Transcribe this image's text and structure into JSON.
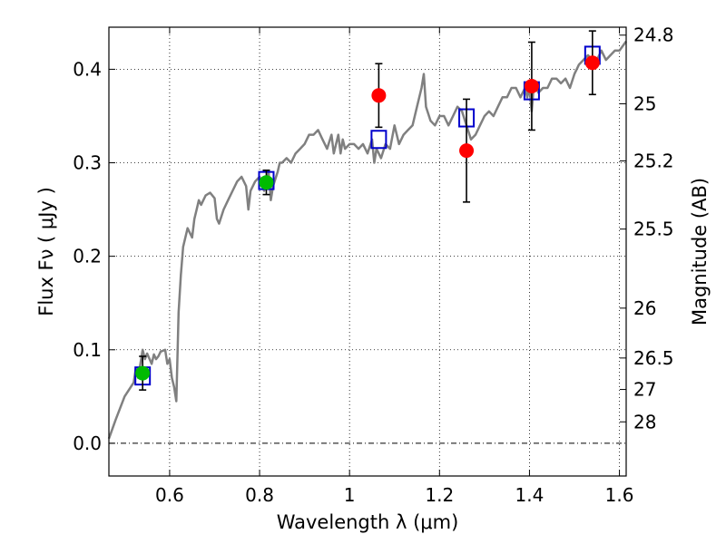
{
  "chart_data": {
    "type": "scatter",
    "title": "",
    "xlabel": "Wavelength  λ (μm)",
    "ylabel": "Flux  Fν  ( μJy )",
    "ylabel_right": "Magnitude (AB)",
    "xlim": [
      0.465,
      1.615
    ],
    "ylim": [
      -0.035,
      0.445
    ],
    "grid": true,
    "zero_line_style": "dash-dot",
    "x_ticks": [
      0.6,
      0.8,
      1.0,
      1.2,
      1.4,
      1.6
    ],
    "x_tick_labels": [
      "0.6",
      "0.8",
      "1",
      "1.2",
      "1.4",
      "1.6"
    ],
    "y_ticks": [
      0.0,
      0.1,
      0.2,
      0.3,
      0.4
    ],
    "y_tick_labels": [
      "0.0",
      "0.1",
      "0.2",
      "0.3",
      "0.4"
    ],
    "right_axis": {
      "label": "Magnitude (AB)",
      "ticks": [
        {
          "value": 24.8,
          "label": "24.8"
        },
        {
          "value": 25.0,
          "label": "25"
        },
        {
          "value": 25.2,
          "label": "25.2"
        },
        {
          "value": 25.5,
          "label": "25.5"
        },
        {
          "value": 26.0,
          "label": "26"
        },
        {
          "value": 26.5,
          "label": "26.5"
        },
        {
          "value": 27.0,
          "label": "27"
        },
        {
          "value": 28.0,
          "label": "28"
        }
      ]
    },
    "series": [
      {
        "name": "Model spectrum",
        "kind": "line",
        "color": "#808080",
        "x": [
          0.465,
          0.48,
          0.5,
          0.52,
          0.525,
          0.53,
          0.535,
          0.54,
          0.545,
          0.55,
          0.56,
          0.565,
          0.57,
          0.575,
          0.58,
          0.59,
          0.595,
          0.6,
          0.605,
          0.61,
          0.615,
          0.62,
          0.625,
          0.63,
          0.64,
          0.65,
          0.655,
          0.66,
          0.665,
          0.67,
          0.68,
          0.69,
          0.7,
          0.705,
          0.71,
          0.72,
          0.73,
          0.74,
          0.75,
          0.76,
          0.77,
          0.775,
          0.78,
          0.79,
          0.8,
          0.81,
          0.82,
          0.825,
          0.83,
          0.84,
          0.845,
          0.85,
          0.86,
          0.87,
          0.88,
          0.89,
          0.9,
          0.91,
          0.92,
          0.93,
          0.94,
          0.95,
          0.96,
          0.965,
          0.97,
          0.975,
          0.98,
          0.985,
          0.99,
          1.0,
          1.01,
          1.02,
          1.03,
          1.04,
          1.05,
          1.055,
          1.06,
          1.07,
          1.08,
          1.09,
          1.1,
          1.11,
          1.12,
          1.13,
          1.14,
          1.15,
          1.16,
          1.165,
          1.17,
          1.18,
          1.19,
          1.2,
          1.21,
          1.22,
          1.23,
          1.24,
          1.25,
          1.26,
          1.27,
          1.28,
          1.29,
          1.3,
          1.31,
          1.32,
          1.33,
          1.34,
          1.35,
          1.36,
          1.37,
          1.38,
          1.39,
          1.395,
          1.4,
          1.405,
          1.41,
          1.42,
          1.43,
          1.44,
          1.45,
          1.46,
          1.47,
          1.48,
          1.49,
          1.5,
          1.51,
          1.52,
          1.53,
          1.54,
          1.55,
          1.56,
          1.57,
          1.58,
          1.59,
          1.6,
          1.615
        ],
        "y": [
          0.005,
          0.025,
          0.05,
          0.065,
          0.08,
          0.07,
          0.085,
          0.1,
          0.09,
          0.096,
          0.085,
          0.095,
          0.09,
          0.093,
          0.098,
          0.1,
          0.085,
          0.09,
          0.07,
          0.06,
          0.045,
          0.14,
          0.18,
          0.21,
          0.23,
          0.22,
          0.24,
          0.25,
          0.26,
          0.255,
          0.265,
          0.268,
          0.262,
          0.24,
          0.235,
          0.25,
          0.26,
          0.27,
          0.28,
          0.285,
          0.275,
          0.25,
          0.27,
          0.28,
          0.285,
          0.27,
          0.29,
          0.26,
          0.275,
          0.29,
          0.3,
          0.3,
          0.305,
          0.3,
          0.31,
          0.315,
          0.32,
          0.33,
          0.33,
          0.335,
          0.325,
          0.315,
          0.33,
          0.31,
          0.32,
          0.33,
          0.31,
          0.325,
          0.315,
          0.32,
          0.32,
          0.315,
          0.32,
          0.31,
          0.325,
          0.3,
          0.315,
          0.305,
          0.32,
          0.315,
          0.34,
          0.32,
          0.33,
          0.335,
          0.34,
          0.36,
          0.38,
          0.395,
          0.36,
          0.345,
          0.34,
          0.35,
          0.35,
          0.34,
          0.35,
          0.36,
          0.355,
          0.34,
          0.325,
          0.33,
          0.34,
          0.35,
          0.355,
          0.35,
          0.36,
          0.37,
          0.37,
          0.38,
          0.38,
          0.37,
          0.38,
          0.37,
          0.38,
          0.355,
          0.385,
          0.375,
          0.38,
          0.38,
          0.39,
          0.39,
          0.385,
          0.39,
          0.38,
          0.395,
          0.405,
          0.41,
          0.415,
          0.41,
          0.41,
          0.42,
          0.41,
          0.415,
          0.42,
          0.42,
          0.43
        ]
      },
      {
        "name": "Green photometry",
        "kind": "circle",
        "color": "#00bb00",
        "points": [
          {
            "x": 0.54,
            "y": 0.075,
            "yerr": 0.018
          },
          {
            "x": 0.815,
            "y": 0.279,
            "yerr": 0.013
          }
        ]
      },
      {
        "name": "Red photometry",
        "kind": "circle",
        "color": "#ff0000",
        "points": [
          {
            "x": 1.065,
            "y": 0.372,
            "yerr": 0.034
          },
          {
            "x": 1.26,
            "y": 0.313,
            "yerr": 0.055
          },
          {
            "x": 1.405,
            "y": 0.382,
            "yerr": 0.047
          },
          {
            "x": 1.54,
            "y": 0.407,
            "yerr": 0.034
          }
        ]
      },
      {
        "name": "Model synthetic photometry",
        "kind": "square",
        "color": "#0000cc",
        "points": [
          {
            "x": 0.54,
            "y": 0.072
          },
          {
            "x": 0.815,
            "y": 0.281
          },
          {
            "x": 1.065,
            "y": 0.325
          },
          {
            "x": 1.26,
            "y": 0.348
          },
          {
            "x": 1.405,
            "y": 0.377
          },
          {
            "x": 1.54,
            "y": 0.415
          }
        ]
      }
    ]
  }
}
